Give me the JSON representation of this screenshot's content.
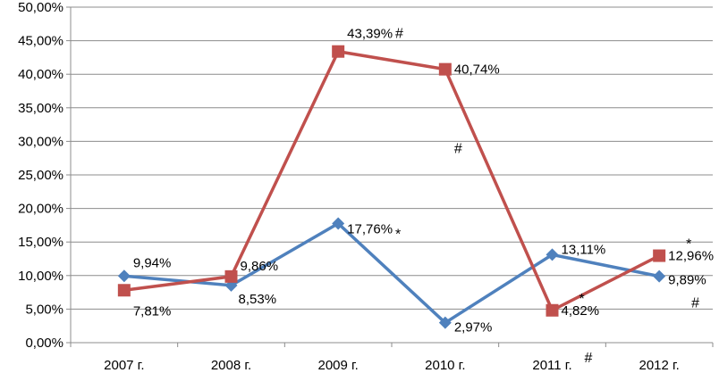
{
  "chart_data": {
    "type": "line",
    "categories": [
      "2007 г.",
      "2008 г.",
      "2009 г.",
      "2010 г.",
      "2011 г.",
      "2012 г."
    ],
    "ylim": [
      0,
      50
    ],
    "ytick_step": 5,
    "y_tick_labels": [
      "0,00%",
      "5,00%",
      "10,00%",
      "15,00%",
      "20,00%",
      "25,00%",
      "30,00%",
      "35,00%",
      "40,00%",
      "45,00%",
      "50,00%"
    ],
    "grid": "horizontal",
    "legend": "none",
    "series": [
      {
        "color": "#4f81bd",
        "marker": "diamond",
        "values": [
          9.94,
          8.53,
          17.76,
          2.97,
          13.11,
          9.89
        ],
        "labels": [
          "9,94%",
          "8,53%",
          "17,76%",
          "2,97%",
          "13,11%",
          "9,89%"
        ]
      },
      {
        "color": "#c0504d",
        "marker": "square",
        "values": [
          7.81,
          9.86,
          43.39,
          40.74,
          4.82,
          12.96
        ],
        "labels": [
          "7,81%",
          "9,86%",
          "43,39%",
          "40,74%",
          "4,82%",
          "12,96%"
        ]
      }
    ],
    "annotations": [
      {
        "text": "#",
        "series": 1,
        "index": 2,
        "where": "after-label"
      },
      {
        "text": "*",
        "series": 0,
        "index": 2,
        "where": "after-label"
      },
      {
        "text": "#",
        "series": 1,
        "index": 3,
        "where": "below"
      },
      {
        "text": "*",
        "series": 1,
        "index": 4,
        "where": "above-right"
      },
      {
        "text": "#",
        "series": 1,
        "index": 4,
        "where": "below-right"
      },
      {
        "text": "*",
        "series": 1,
        "index": 5,
        "where": "above-right"
      },
      {
        "text": "#",
        "series": 1,
        "index": 5,
        "where": "below-right"
      }
    ]
  }
}
